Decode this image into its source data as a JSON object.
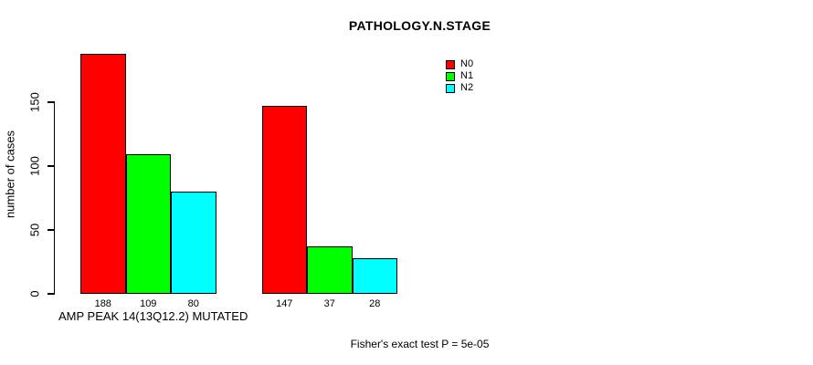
{
  "chart_data": {
    "type": "bar",
    "title": "PATHOLOGY.N.STAGE",
    "xlabel": "AMP PEAK 14(13Q12.2) MUTATED",
    "ylabel": "number of cases",
    "footer_annotation": "Fisher's exact test P = 5e-05",
    "ylim": [
      0,
      188
    ],
    "yticks": [
      0,
      50,
      100,
      150
    ],
    "grid": false,
    "group_count": 2,
    "bar_value_labels_shown": true,
    "bar_outline_color": "#000000",
    "series": [
      {
        "name": "N0",
        "color": "#ff0000",
        "values": [
          188,
          147
        ]
      },
      {
        "name": "N1",
        "color": "#00ff00",
        "values": [
          109,
          37
        ]
      },
      {
        "name": "N2",
        "color": "#00ffff",
        "values": [
          80,
          28
        ]
      }
    ],
    "legend": {
      "position": "top-right",
      "entries": [
        {
          "label": "N0",
          "color": "#ff0000"
        },
        {
          "label": "N1",
          "color": "#00ff00"
        },
        {
          "label": "N2",
          "color": "#00ffff"
        }
      ]
    }
  }
}
